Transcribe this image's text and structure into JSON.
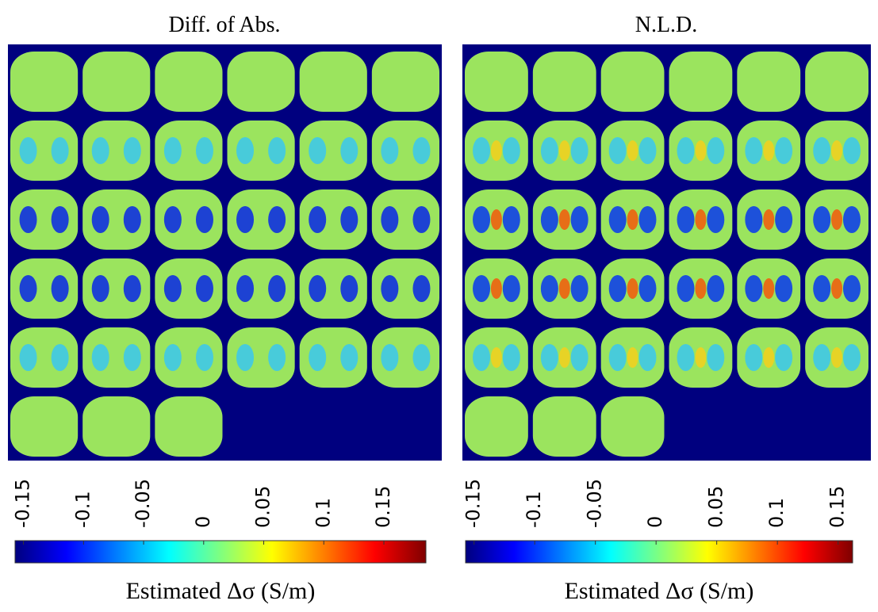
{
  "chart_data": [
    {
      "type": "colorbar",
      "title": "Diff. of Abs.",
      "xlabel": "Estimated Δσ (S/m)",
      "colormap": "jet",
      "xlim": [
        -0.157,
        0.185
      ],
      "xticks": [
        -0.15,
        -0.1,
        -0.05,
        0,
        0.05,
        0.1,
        0.15
      ]
    },
    {
      "type": "colorbar",
      "title": "N.L.D.",
      "xlabel": "Estimated Δσ (S/m)",
      "colormap": "jet",
      "xlim": [
        -0.157,
        0.162
      ],
      "xticks": [
        -0.15,
        -0.1,
        -0.05,
        0,
        0.05,
        0.1,
        0.15
      ]
    }
  ]
}
